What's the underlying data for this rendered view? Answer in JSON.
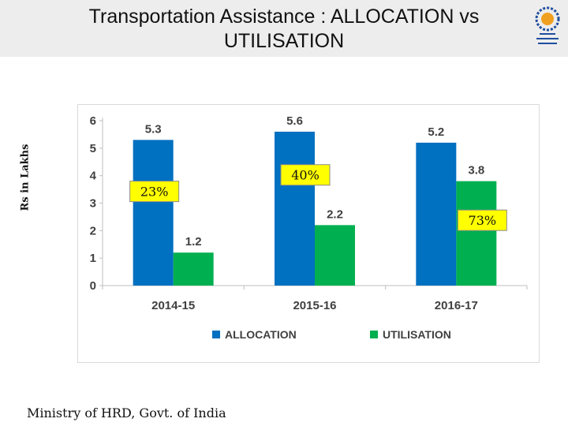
{
  "slide": {
    "title": "Transportation Assistance : ALLOCATION vs UTILISATION",
    "ylabel": "Rs in Lakhs",
    "footer": "Ministry of HRD, Govt. of India"
  },
  "logo": {
    "icon": "emblem-gear-logo",
    "color": "#1f4e9e"
  },
  "chart_data": {
    "type": "bar",
    "categories": [
      "2014-15",
      "2015-16",
      "2016-17"
    ],
    "series": [
      {
        "name": "ALLOCATION",
        "values": [
          5.3,
          5.6,
          5.2
        ],
        "color": "#0070c0"
      },
      {
        "name": "UTILISATION",
        "values": [
          1.2,
          2.2,
          3.8
        ],
        "color": "#00b050"
      }
    ],
    "value_labels": [
      [
        "5.3",
        "5.6",
        "5.2"
      ],
      [
        "1.2",
        "2.2",
        "3.8"
      ]
    ],
    "annotations": [
      "23%",
      "40%",
      "73%"
    ],
    "annotation_style": {
      "fill": "#ffff00",
      "border": "#8a8a8a"
    },
    "ylim": [
      0,
      6
    ],
    "yticks": [
      0,
      1,
      2,
      3,
      4,
      5,
      6
    ],
    "grid": false,
    "legend": "bottom"
  }
}
